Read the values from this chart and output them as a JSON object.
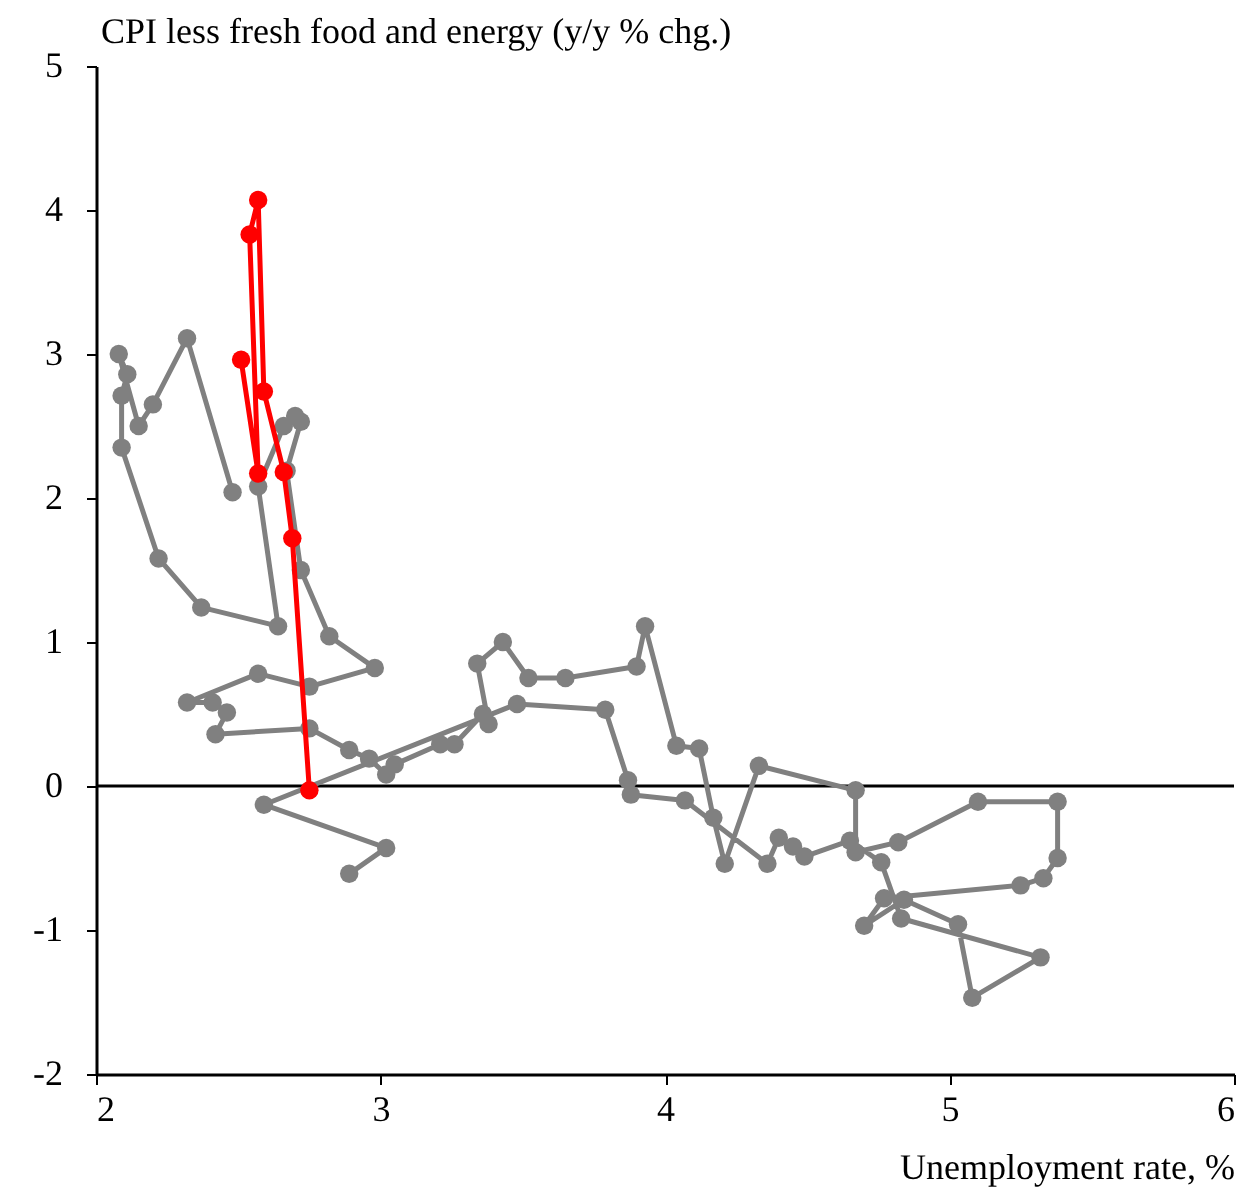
{
  "chart_data": {
    "type": "line",
    "ylabel": "CPI less fresh food and energy (y/y % chg.)",
    "xlabel": "Unemployment rate, %",
    "xlim": [
      2,
      6
    ],
    "xticks": [
      2,
      3,
      4,
      5,
      6
    ],
    "ylim": [
      -2,
      5
    ],
    "yticks": [
      -2,
      -1,
      0,
      1,
      2,
      3,
      4,
      5
    ],
    "grid": false,
    "marker": "circle",
    "line_style": "solid",
    "ref_lines": [
      {
        "axis": "y",
        "value": 0,
        "color": "#000000"
      }
    ],
    "series": [
      {
        "color": "#808080",
        "x": [
          2.48,
          2.32,
          2.2,
          2.15,
          2.08,
          2.11,
          2.09,
          2.09,
          2.22,
          2.37,
          2.64,
          2.57,
          2.66,
          2.7,
          2.72,
          2.67,
          2.72,
          2.82,
          2.98,
          2.75,
          2.57,
          2.32,
          2.41,
          2.46,
          2.42,
          2.75,
          2.89,
          2.96,
          3.02,
          3.05,
          3.21,
          3.26,
          3.36,
          3.38,
          3.34,
          3.43,
          3.52,
          3.65,
          3.9,
          3.93,
          4.04,
          4.12,
          4.17,
          4.21,
          4.33,
          4.67,
          4.67,
          4.82,
          5.1,
          5.38,
          5.38,
          5.33,
          5.25,
          4.77,
          4.7,
          4.84,
          5.03,
          5.08,
          5.32,
          4.83,
          4.76,
          4.65,
          4.49,
          4.45,
          4.4,
          4.36,
          4.07,
          3.88,
          3.87,
          3.79,
          3.48,
          2.59,
          3.02,
          2.89
        ],
        "values": [
          2.04,
          3.11,
          2.65,
          2.5,
          3.0,
          2.86,
          2.71,
          2.35,
          1.58,
          1.24,
          1.11,
          2.08,
          2.5,
          2.57,
          2.53,
          2.19,
          1.5,
          1.04,
          0.82,
          0.69,
          0.78,
          0.58,
          0.58,
          0.51,
          0.36,
          0.4,
          0.25,
          0.19,
          0.08,
          0.15,
          0.29,
          0.29,
          0.5,
          0.43,
          0.85,
          1.0,
          0.75,
          0.75,
          0.83,
          1.11,
          0.28,
          0.26,
          -0.22,
          -0.54,
          0.14,
          -0.03,
          -0.46,
          -0.39,
          -0.11,
          -0.11,
          -0.5,
          -0.64,
          -0.69,
          -0.78,
          -0.97,
          -0.79,
          -0.96,
          -1.47,
          -1.19,
          -0.92,
          -0.53,
          -0.38,
          -0.49,
          -0.42,
          -0.36,
          -0.54,
          -0.1,
          -0.06,
          0.04,
          0.53,
          0.57,
          -0.13,
          -0.43,
          -0.61
        ]
      },
      {
        "color": "#ff0000",
        "x": [
          2.51,
          2.57,
          2.54,
          2.57,
          2.59,
          2.66,
          2.69,
          2.75
        ],
        "values": [
          2.96,
          2.17,
          3.83,
          4.07,
          2.74,
          2.18,
          1.72,
          -0.03
        ]
      }
    ]
  }
}
